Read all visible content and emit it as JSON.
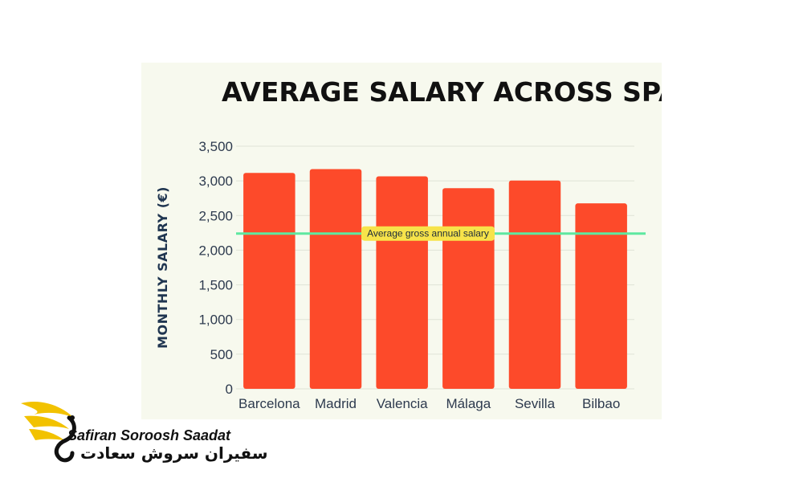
{
  "chart_data": {
    "type": "bar",
    "title": "AVERAGE SALARY ACROSS SPAIN",
    "ylabel": "MONTHLY SALARY (€)",
    "xlabel": "",
    "categories": [
      "Barcelona",
      "Madrid",
      "Valencia",
      "Málaga",
      "Sevilla",
      "Bilbao"
    ],
    "values": [
      3115,
      3170,
      3065,
      2895,
      3005,
      2675
    ],
    "ylim": [
      0,
      3500
    ],
    "yticks": [
      0,
      500,
      1000,
      1500,
      2000,
      2500,
      3000,
      3500
    ],
    "ytick_labels": [
      "0",
      "500",
      "1,000",
      "1,500",
      "2,000",
      "2,500",
      "3,000",
      "3,500"
    ],
    "grid": true,
    "reference_line": {
      "label": "Average gross annual salary",
      "value": 2240,
      "color": "#5ee8a0"
    },
    "colors": {
      "bar": "#fd4a2a",
      "panel": "#f7f9ee",
      "label_bg": "#f7e34a"
    }
  },
  "watermark": {
    "brand_en": "Safiran Soroosh Saadat",
    "brand_fa": "سفیران سروش سعادت",
    "colors": {
      "wing": "#f2c200",
      "text": "#111111"
    }
  }
}
